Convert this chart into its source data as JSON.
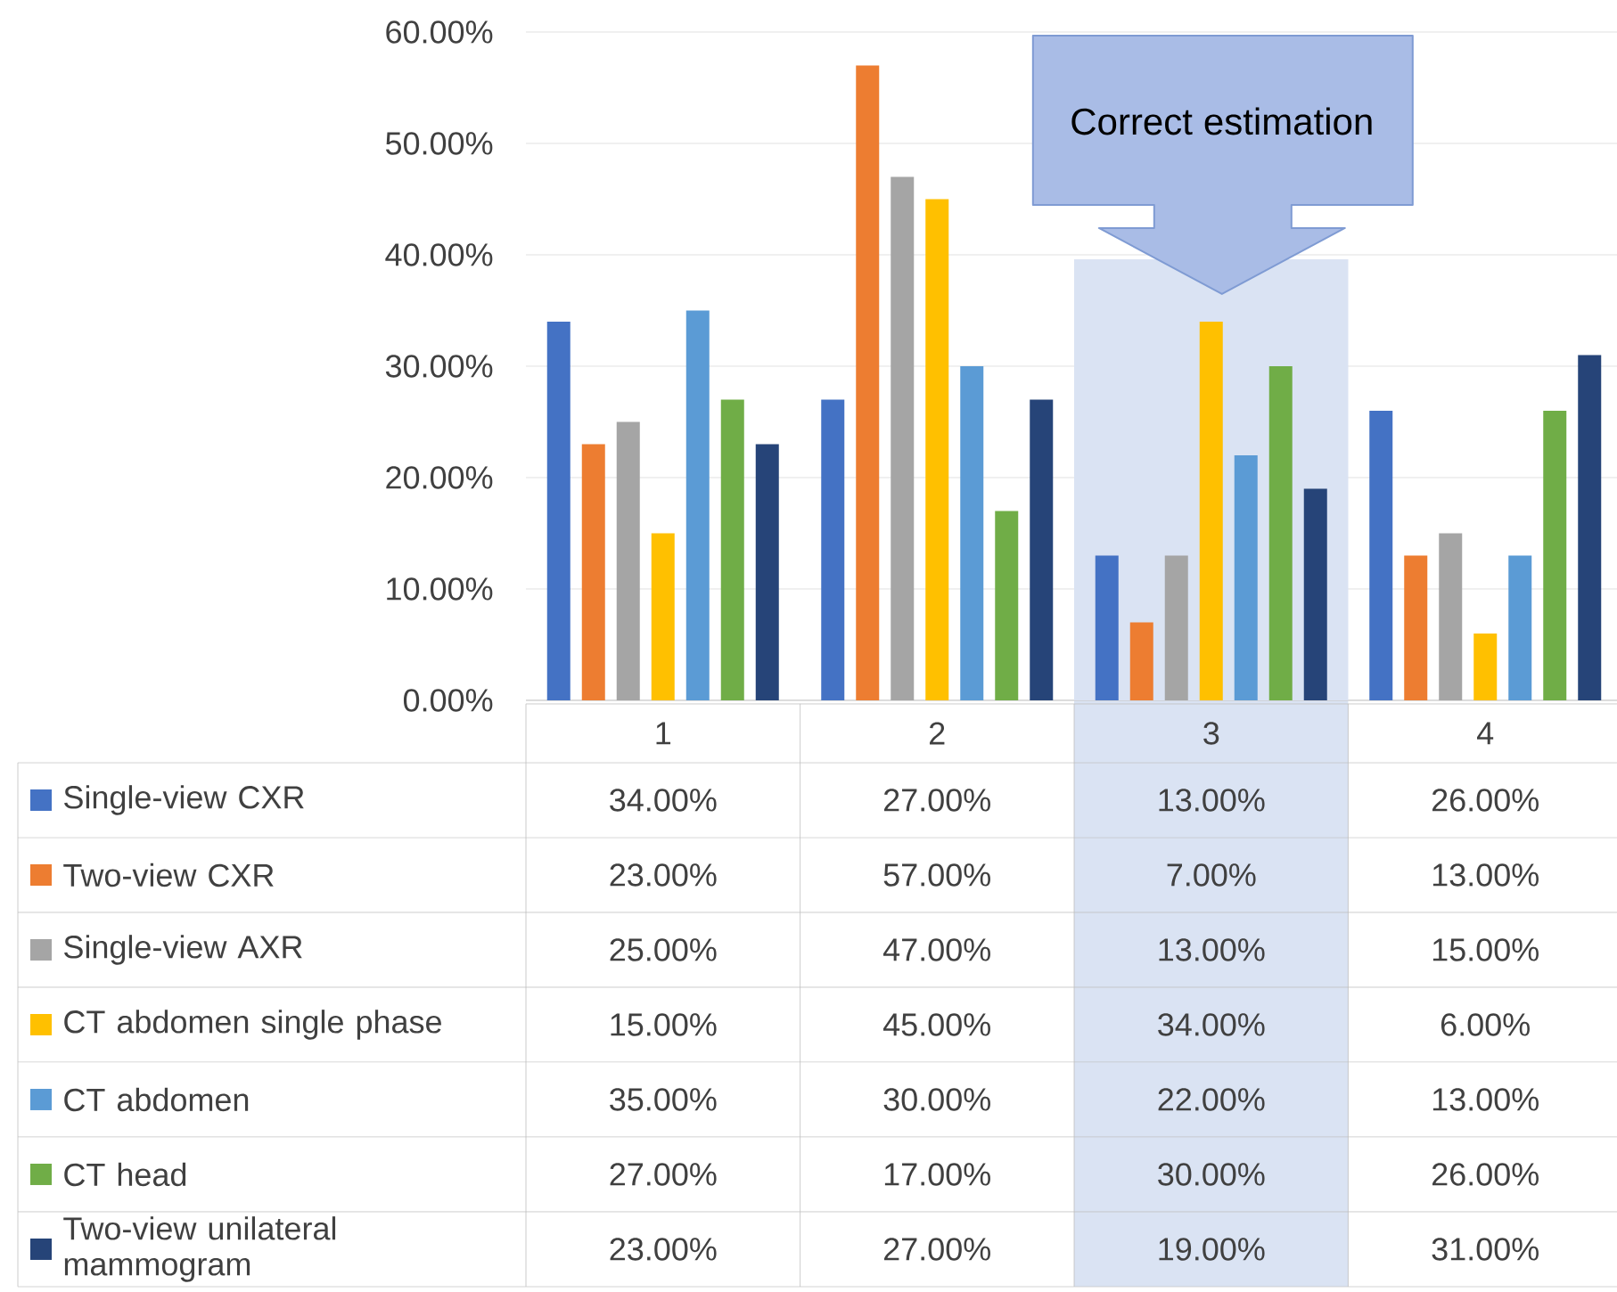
{
  "chart_data": {
    "type": "bar",
    "categories": [
      "1",
      "2",
      "3",
      "4"
    ],
    "series": [
      {
        "name": "Single-view CXR",
        "color": "#4472c4",
        "values": [
          34,
          27,
          13,
          26
        ],
        "value_labels": [
          "34.00%",
          "27.00%",
          "13.00%",
          "26.00%"
        ]
      },
      {
        "name": "Two-view CXR",
        "color": "#ed7d31",
        "values": [
          23,
          57,
          7,
          13
        ],
        "value_labels": [
          "23.00%",
          "57.00%",
          "7.00%",
          "13.00%"
        ]
      },
      {
        "name": "Single-view AXR",
        "color": "#a5a5a5",
        "values": [
          25,
          47,
          13,
          15
        ],
        "value_labels": [
          "25.00%",
          "47.00%",
          "13.00%",
          "15.00%"
        ]
      },
      {
        "name": "CT abdomen single phase",
        "color": "#ffc000",
        "values": [
          15,
          45,
          34,
          6
        ],
        "value_labels": [
          "15.00%",
          "45.00%",
          "34.00%",
          "6.00%"
        ]
      },
      {
        "name": "CT abdomen",
        "color": "#5b9bd5",
        "values": [
          35,
          30,
          22,
          13
        ],
        "value_labels": [
          "35.00%",
          "30.00%",
          "22.00%",
          "13.00%"
        ]
      },
      {
        "name": "CT head",
        "color": "#70ad47",
        "values": [
          27,
          17,
          30,
          26
        ],
        "value_labels": [
          "27.00%",
          "17.00%",
          "30.00%",
          "26.00%"
        ]
      },
      {
        "name": "Two-view unilateral mammogram",
        "color": "#264478",
        "values": [
          23,
          27,
          19,
          31
        ],
        "value_labels": [
          "23.00%",
          "27.00%",
          "19.00%",
          "31.00%"
        ]
      }
    ],
    "ylim": [
      0,
      60
    ],
    "yticks": [
      {
        "value": 0,
        "label": "0.00%"
      },
      {
        "value": 10,
        "label": "10.00%"
      },
      {
        "value": 20,
        "label": "20.00%"
      },
      {
        "value": 30,
        "label": "30.00%"
      },
      {
        "value": 40,
        "label": "40.00%"
      },
      {
        "value": 50,
        "label": "50.00%"
      },
      {
        "value": 60,
        "label": "60.00%"
      }
    ],
    "grid": "y",
    "bands": [
      {
        "axis": "x",
        "from": "3",
        "to": "3",
        "color": "#dae3f3"
      }
    ],
    "legend": "bottom left",
    "annotations": [
      "Correct estimation"
    ]
  }
}
